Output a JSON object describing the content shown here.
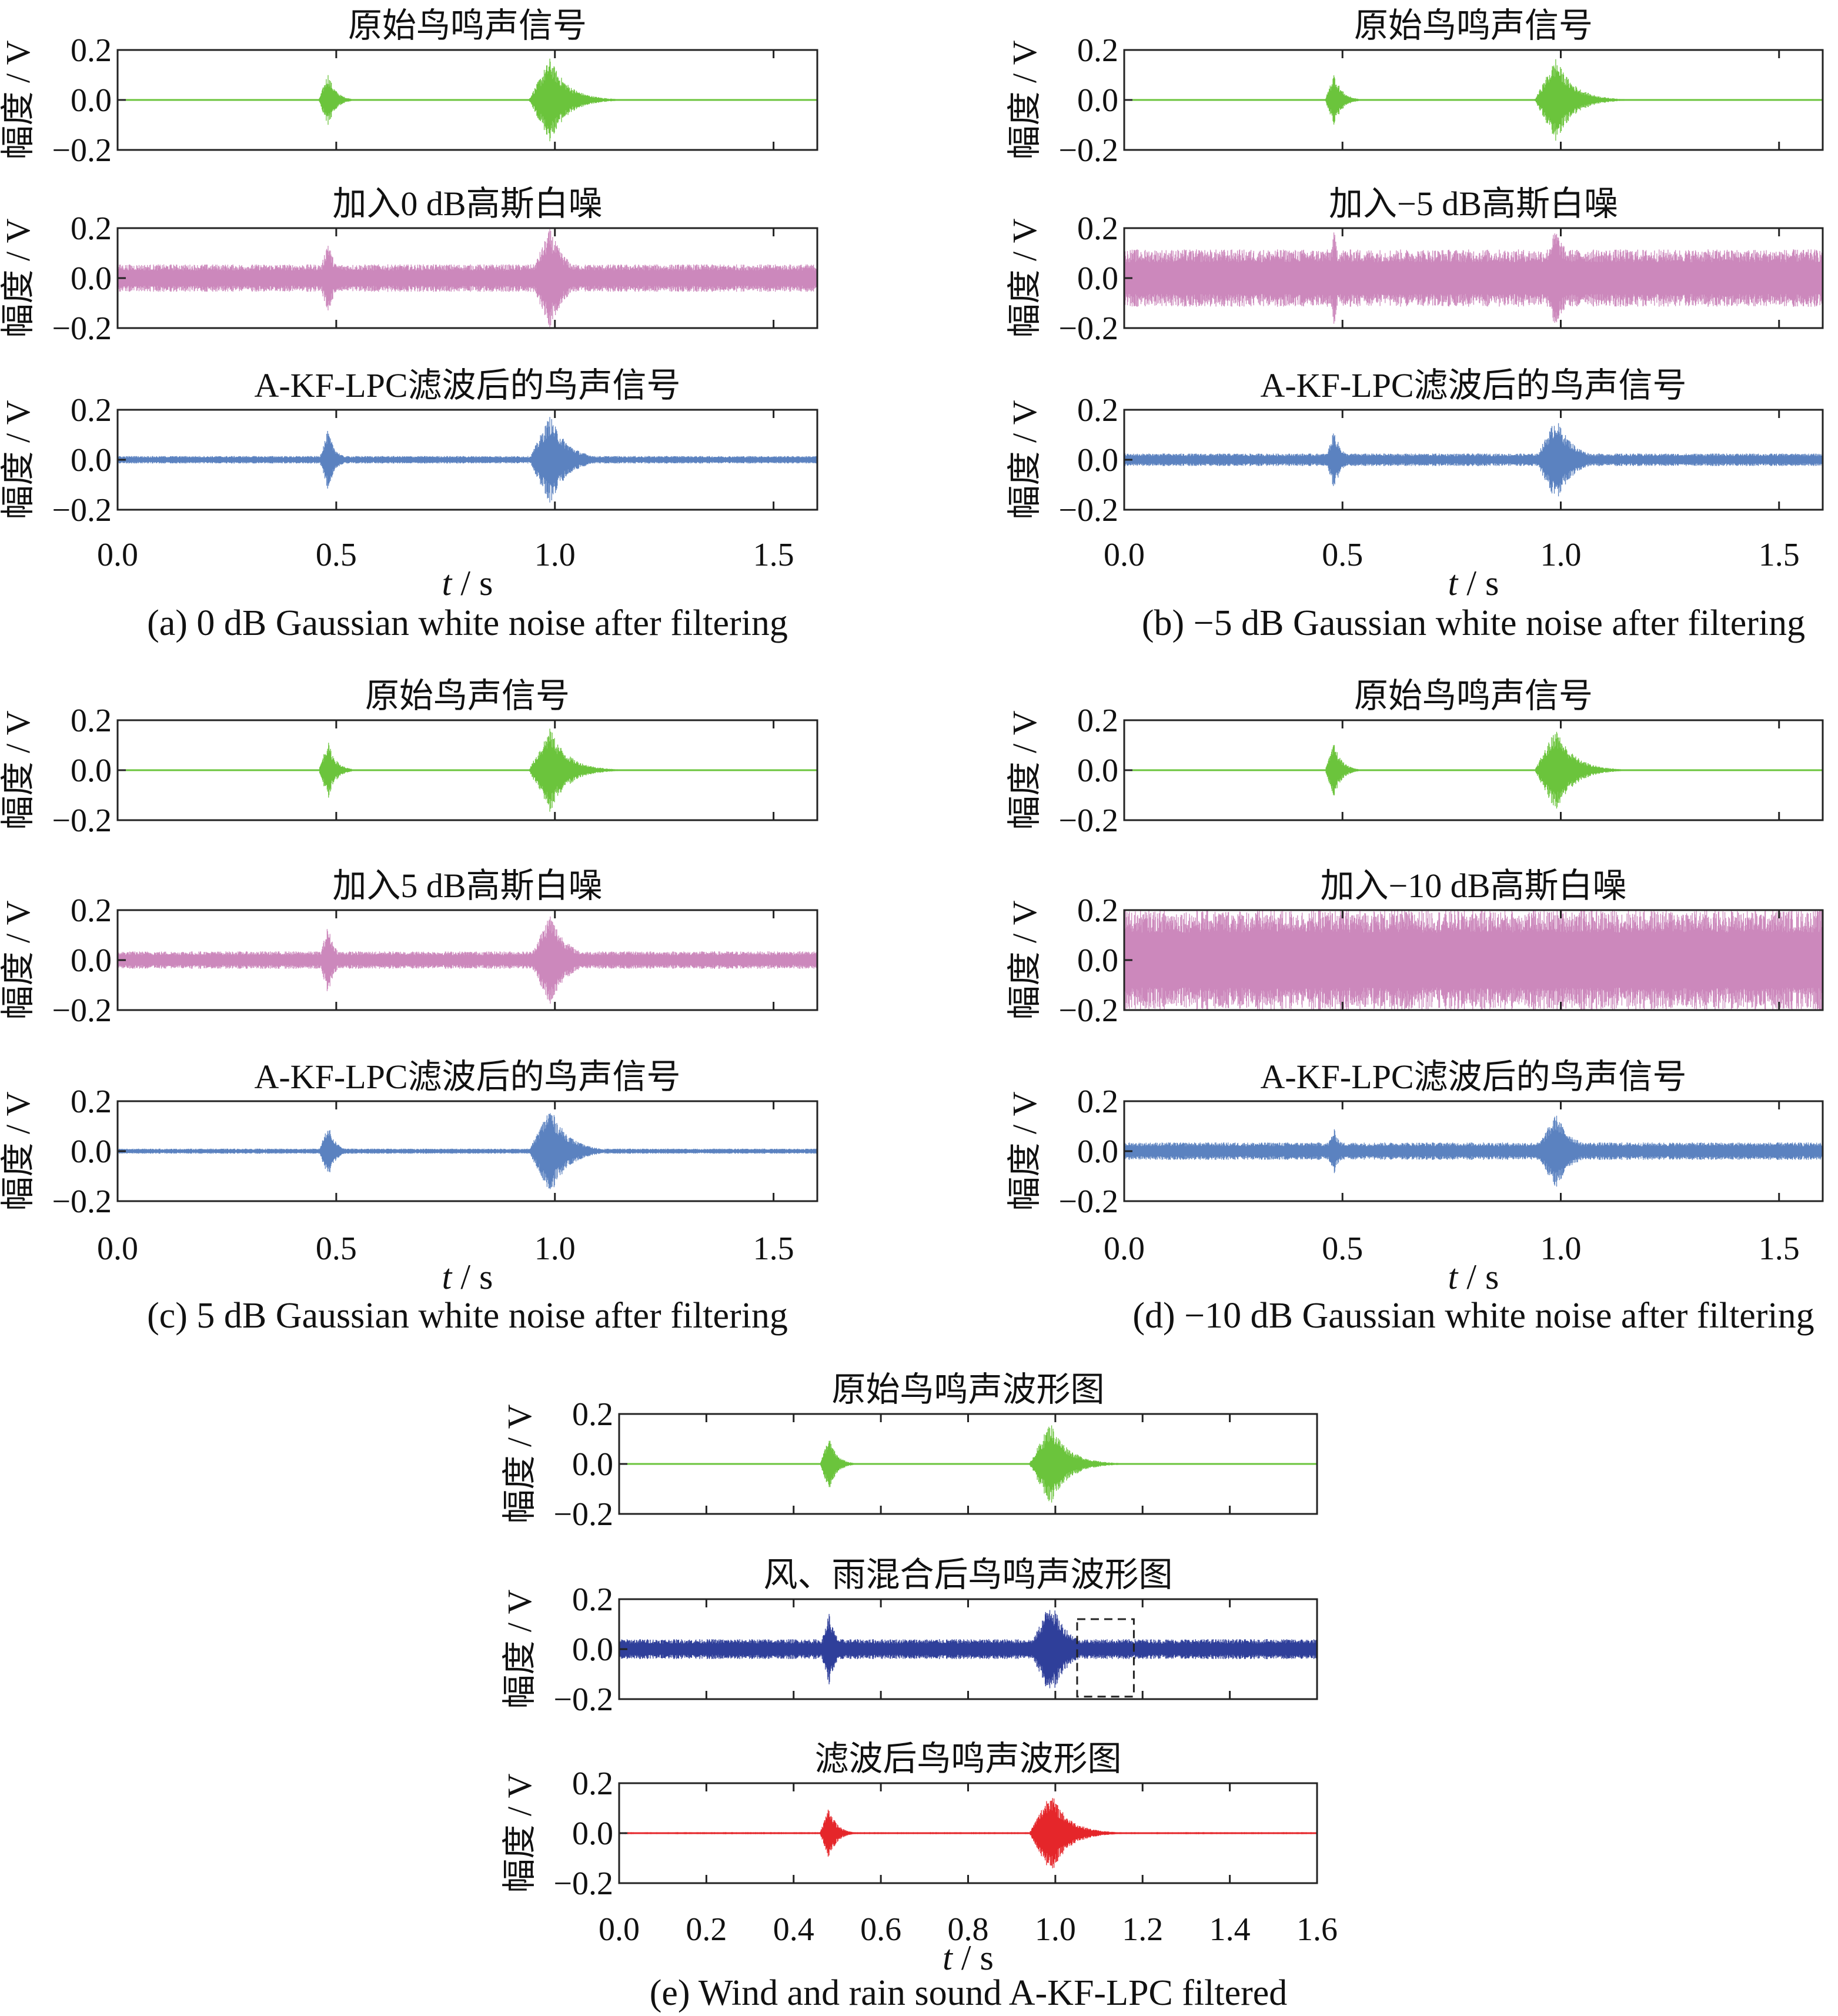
{
  "figure": {
    "y_axis_label": "幅度 / V",
    "x_axis_label_italic": "t",
    "x_axis_label_unit": " / s"
  },
  "colors": {
    "original": "#6bc43c",
    "noisy": "#cc88bc",
    "filtered_blue": "#5b82c0",
    "wind_rain_noisy": "#2f3f9a",
    "filtered_red": "#e5262a"
  },
  "chart_data": [
    {
      "id": "a",
      "caption": "(a) 0 dB Gaussian white noise after filtering",
      "type": "line",
      "xlim": [
        0.0,
        1.6
      ],
      "xticks": [
        "0.0",
        "0.5",
        "1.0",
        "1.5"
      ],
      "panels": [
        {
          "title": "原始鸟鸣声信号",
          "series": "original",
          "ylim": [
            -0.2,
            0.2
          ],
          "yticks": [
            "0.2",
            "0.0",
            "−0.2"
          ],
          "noise_amplitude": 0.003,
          "bursts": [
            {
              "t_start": 0.46,
              "t_end": 0.52,
              "peak": 0.11
            },
            {
              "t_start": 0.94,
              "t_end": 1.08,
              "peak": 0.17
            }
          ]
        },
        {
          "title": "加入0 dB高斯白噪",
          "series": "noisy",
          "ylim": [
            -0.2,
            0.2
          ],
          "yticks": [
            "0.2",
            "0.0",
            "−0.2"
          ],
          "noise_amplitude": 0.055,
          "bursts": [
            {
              "t_start": 0.46,
              "t_end": 0.52,
              "peak": 0.16
            },
            {
              "t_start": 0.94,
              "t_end": 1.08,
              "peak": 0.2
            }
          ]
        },
        {
          "title": "A-KF-LPC滤波后的鸟声信号",
          "series": "filtered_blue",
          "ylim": [
            -0.2,
            0.2
          ],
          "yticks": [
            "0.2",
            "0.0",
            "−0.2"
          ],
          "noise_amplitude": 0.015,
          "bursts": [
            {
              "t_start": 0.46,
              "t_end": 0.52,
              "peak": 0.12
            },
            {
              "t_start": 0.94,
              "t_end": 1.08,
              "peak": 0.18
            }
          ]
        }
      ]
    },
    {
      "id": "b",
      "caption": "(b) −5 dB Gaussian white noise after filtering",
      "type": "line",
      "xlim": [
        0.0,
        1.6
      ],
      "xticks": [
        "0.0",
        "0.5",
        "1.0",
        "1.5"
      ],
      "panels": [
        {
          "title": "原始鸟鸣声信号",
          "series": "original",
          "ylim": [
            -0.2,
            0.2
          ],
          "yticks": [
            "0.2",
            "0.0",
            "−0.2"
          ],
          "noise_amplitude": 0.003,
          "bursts": [
            {
              "t_start": 0.46,
              "t_end": 0.52,
              "peak": 0.11
            },
            {
              "t_start": 0.94,
              "t_end": 1.08,
              "peak": 0.17
            }
          ]
        },
        {
          "title": "加入−5 dB高斯白噪",
          "series": "noisy",
          "ylim": [
            -0.2,
            0.2
          ],
          "yticks": [
            "0.2",
            "0.0",
            "−0.2"
          ],
          "noise_amplitude": 0.115,
          "bursts": [
            {
              "t_start": 0.46,
              "t_end": 0.52,
              "peak": 0.19
            },
            {
              "t_start": 0.94,
              "t_end": 1.08,
              "peak": 0.2
            }
          ]
        },
        {
          "title": "A-KF-LPC滤波后的鸟声信号",
          "series": "filtered_blue",
          "ylim": [
            -0.2,
            0.2
          ],
          "yticks": [
            "0.2",
            "0.0",
            "−0.2"
          ],
          "noise_amplitude": 0.025,
          "bursts": [
            {
              "t_start": 0.46,
              "t_end": 0.52,
              "peak": 0.12
            },
            {
              "t_start": 0.94,
              "t_end": 1.08,
              "peak": 0.17
            }
          ]
        }
      ]
    },
    {
      "id": "c",
      "caption": "(c) 5 dB Gaussian white noise after filtering",
      "type": "line",
      "xlim": [
        0.0,
        1.6
      ],
      "xticks": [
        "0.0",
        "0.5",
        "1.0",
        "1.5"
      ],
      "panels": [
        {
          "title": "原始鸟声信号",
          "series": "original",
          "ylim": [
            -0.2,
            0.2
          ],
          "yticks": [
            "0.2",
            "0.0",
            "−0.2"
          ],
          "noise_amplitude": 0.003,
          "bursts": [
            {
              "t_start": 0.46,
              "t_end": 0.52,
              "peak": 0.12
            },
            {
              "t_start": 0.94,
              "t_end": 1.08,
              "peak": 0.17
            }
          ]
        },
        {
          "title": "加入5 dB高斯白噪",
          "series": "noisy",
          "ylim": [
            -0.2,
            0.2
          ],
          "yticks": [
            "0.2",
            "0.0",
            "−0.2"
          ],
          "noise_amplitude": 0.035,
          "bursts": [
            {
              "t_start": 0.46,
              "t_end": 0.52,
              "peak": 0.14
            },
            {
              "t_start": 0.94,
              "t_end": 1.08,
              "peak": 0.19
            }
          ]
        },
        {
          "title": "A-KF-LPC滤波后的鸟声信号",
          "series": "filtered_blue",
          "ylim": [
            -0.2,
            0.2
          ],
          "yticks": [
            "0.2",
            "0.0",
            "−0.2"
          ],
          "noise_amplitude": 0.01,
          "bursts": [
            {
              "t_start": 0.46,
              "t_end": 0.52,
              "peak": 0.11
            },
            {
              "t_start": 0.94,
              "t_end": 1.08,
              "peak": 0.18
            }
          ]
        }
      ]
    },
    {
      "id": "d",
      "caption": "(d) −10 dB Gaussian white noise after filtering",
      "type": "line",
      "xlim": [
        0.0,
        1.6
      ],
      "xticks": [
        "0.0",
        "0.5",
        "1.0",
        "1.5"
      ],
      "panels": [
        {
          "title": "原始鸟鸣声信号",
          "series": "original",
          "ylim": [
            -0.2,
            0.2
          ],
          "yticks": [
            "0.2",
            "0.0",
            "−0.2"
          ],
          "noise_amplitude": 0.003,
          "bursts": [
            {
              "t_start": 0.46,
              "t_end": 0.52,
              "peak": 0.11
            },
            {
              "t_start": 0.94,
              "t_end": 1.08,
              "peak": 0.17
            }
          ]
        },
        {
          "title": "加入−10 dB高斯白噪",
          "series": "noisy",
          "ylim": [
            -0.2,
            0.2
          ],
          "yticks": [
            "0.2",
            "0.0",
            "−0.2"
          ],
          "noise_amplitude": 0.2,
          "bursts": []
        },
        {
          "title": "A-KF-LPC滤波后的鸟声信号",
          "series": "filtered_blue",
          "ylim": [
            -0.2,
            0.2
          ],
          "yticks": [
            "0.2",
            "0.0",
            "−0.2"
          ],
          "noise_amplitude": 0.035,
          "bursts": [
            {
              "t_start": 0.46,
              "t_end": 0.52,
              "peak": 0.09
            },
            {
              "t_start": 0.94,
              "t_end": 1.08,
              "peak": 0.15
            }
          ]
        }
      ]
    },
    {
      "id": "e",
      "caption": "(e) Wind and rain sound A-KF-LPC filtered",
      "type": "line",
      "xlim": [
        0.0,
        1.6
      ],
      "xticks": [
        "0.0",
        "0.2",
        "0.4",
        "0.6",
        "0.8",
        "1.0",
        "1.2",
        "1.4",
        "1.6"
      ],
      "panels": [
        {
          "title": "原始鸟鸣声波形图",
          "series": "original",
          "ylim": [
            -0.2,
            0.2
          ],
          "yticks": [
            "0.2",
            "0.0",
            "−0.2"
          ],
          "noise_amplitude": 0.003,
          "bursts": [
            {
              "t_start": 0.46,
              "t_end": 0.52,
              "peak": 0.11
            },
            {
              "t_start": 0.94,
              "t_end": 1.08,
              "peak": 0.17
            }
          ]
        },
        {
          "title": "风、雨混合后鸟鸣声波形图",
          "series": "wind_rain_noisy",
          "ylim": [
            -0.2,
            0.2
          ],
          "yticks": [
            "0.2",
            "0.0",
            "−0.2"
          ],
          "noise_amplitude": 0.04,
          "bursts": [
            {
              "t_start": 0.46,
              "t_end": 0.52,
              "peak": 0.15
            },
            {
              "t_start": 0.94,
              "t_end": 1.08,
              "peak": 0.2
            }
          ],
          "highlight_box": {
            "t_start": 1.05,
            "t_end": 1.18,
            "y_min": -0.19,
            "y_max": 0.12
          }
        },
        {
          "title": "滤波后鸟鸣声波形图",
          "series": "filtered_red",
          "ylim": [
            -0.2,
            0.2
          ],
          "yticks": [
            "0.2",
            "0.0",
            "−0.2"
          ],
          "noise_amplitude": 0.004,
          "bursts": [
            {
              "t_start": 0.46,
              "t_end": 0.52,
              "peak": 0.11
            },
            {
              "t_start": 0.94,
              "t_end": 1.08,
              "peak": 0.17
            }
          ]
        }
      ]
    }
  ]
}
